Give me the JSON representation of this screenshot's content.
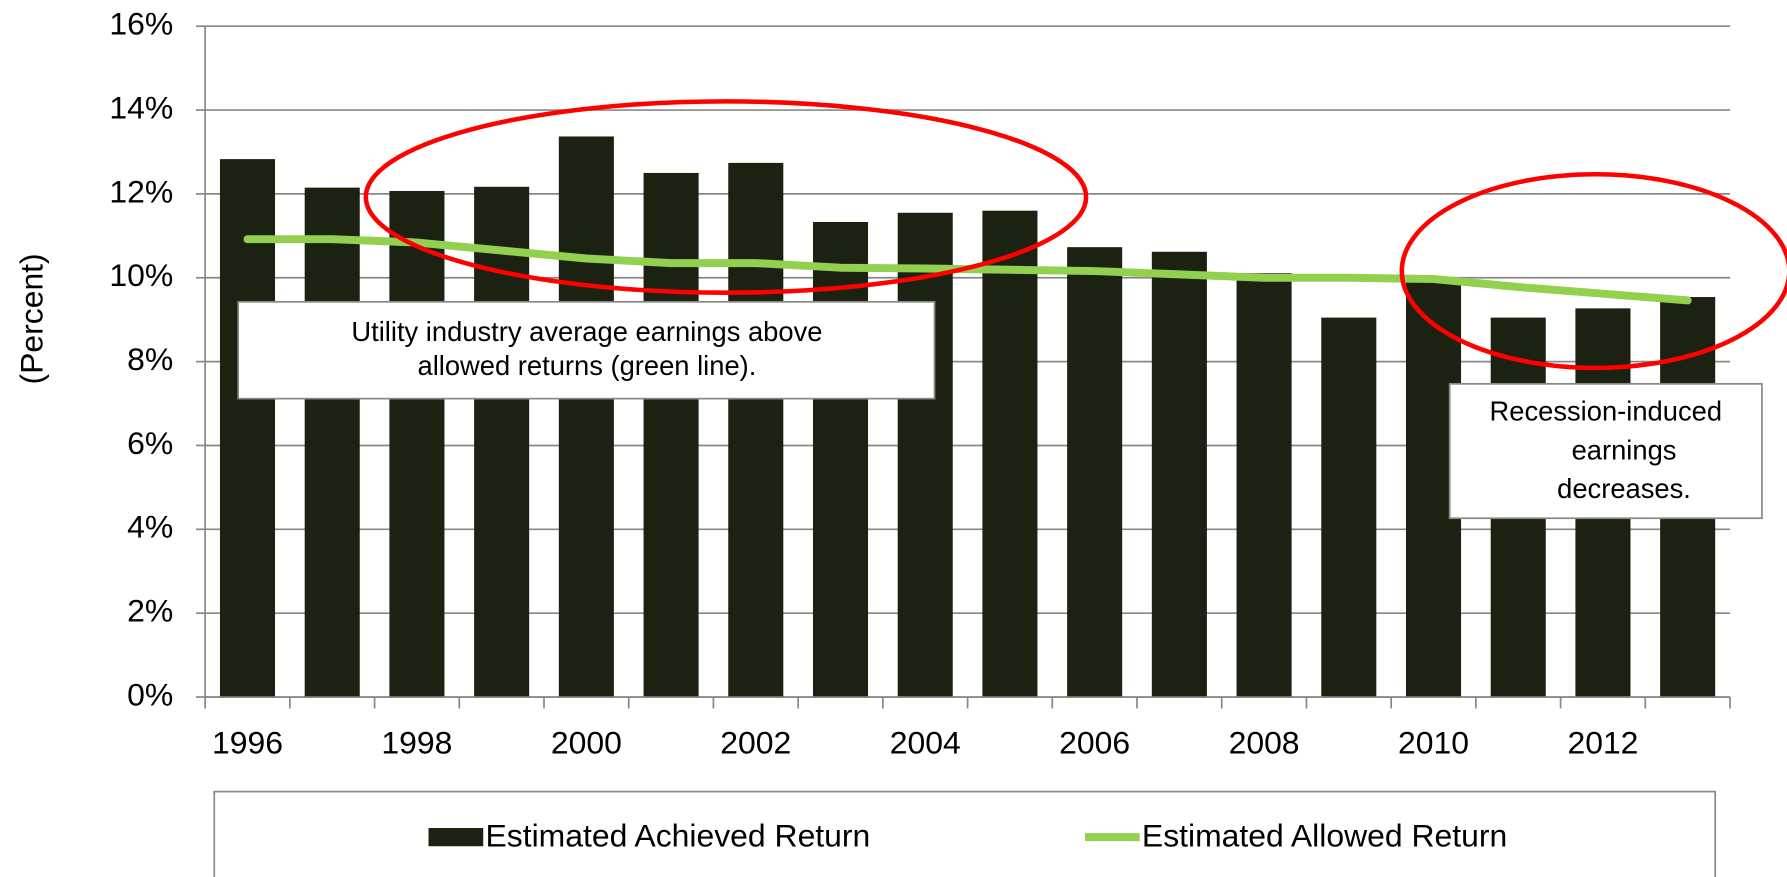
{
  "chart_data": {
    "type": "bar",
    "y_label": "(Percent)",
    "categories": [
      "1996",
      null,
      "1998",
      null,
      "2000",
      null,
      "2002",
      null,
      "2004",
      null,
      "2006",
      null,
      "2008",
      null,
      "2010",
      null,
      "2012",
      null
    ],
    "series": [
      {
        "name": "Estimated Achieved Return",
        "type": "bar",
        "color": "#1c2211",
        "values": [
          12.83,
          12.15,
          12.07,
          12.17,
          13.37,
          12.5,
          12.74,
          11.33,
          11.55,
          11.6,
          10.73,
          10.62,
          10.11,
          9.05,
          9.97,
          9.05,
          9.27,
          9.54
        ]
      },
      {
        "name": "Estimated Allowed Return",
        "type": "line",
        "color": "#92d050",
        "values": [
          10.92,
          10.92,
          10.84,
          10.65,
          10.46,
          10.35,
          10.35,
          10.24,
          10.22,
          10.19,
          10.16,
          10.08,
          10.0,
          10.0,
          9.97,
          9.78,
          9.62,
          9.46
        ]
      }
    ],
    "ylim": [
      0,
      16
    ],
    "yticks": [
      {
        "value": 0,
        "label": "0%"
      },
      {
        "value": 2,
        "label": "2%"
      },
      {
        "value": 4,
        "label": "4%"
      },
      {
        "value": 6,
        "label": "6%"
      },
      {
        "value": 8,
        "label": "8%"
      },
      {
        "value": 10,
        "label": "10%"
      },
      {
        "value": 12,
        "label": "12%"
      },
      {
        "value": 14,
        "label": "14%"
      },
      {
        "value": 16,
        "label": "16%"
      }
    ],
    "grid": true,
    "legend": "bottom",
    "annotations": [
      {
        "lines": [
          "Utility industry average earnings above",
          "allowed returns (green line)."
        ]
      },
      {
        "lines": [
          "Recession-induced",
          "earnings",
          "decreases."
        ]
      }
    ]
  }
}
